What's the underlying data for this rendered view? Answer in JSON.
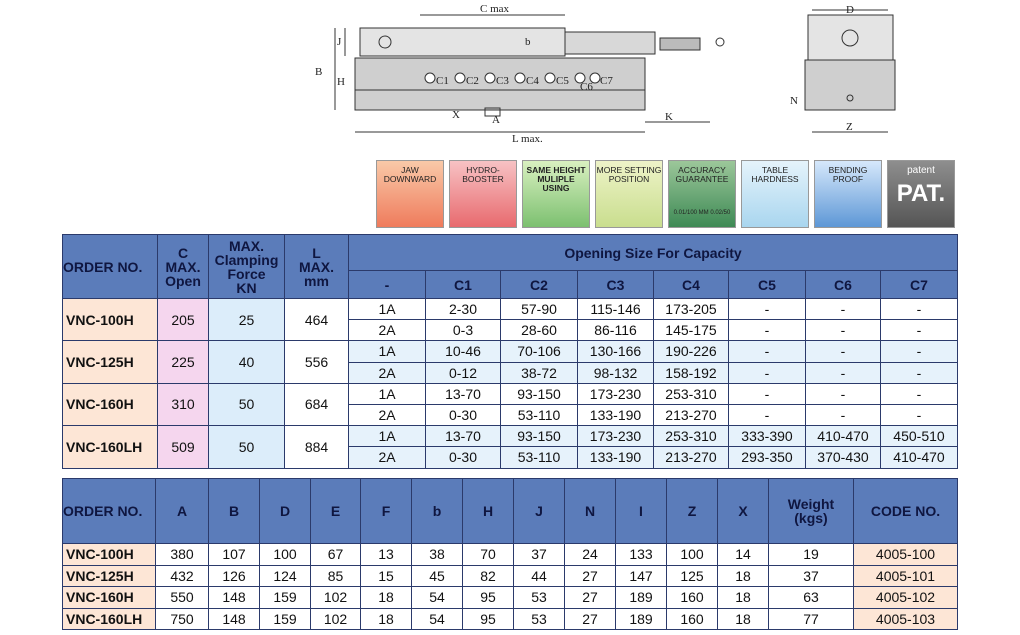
{
  "diagram": {
    "labels": [
      "C max",
      "J",
      "b",
      "B",
      "H",
      "C1",
      "C2",
      "C3",
      "C4",
      "C5",
      "C6",
      "C7",
      "X",
      "A",
      "K",
      "L max.",
      "D",
      "N",
      "Z"
    ]
  },
  "features": [
    {
      "label": "JAW\nDOWNWARD"
    },
    {
      "label": "HYDRO-\nBOOSTER"
    },
    {
      "label": "SAME HEIGHT\nMULIPLE USING"
    },
    {
      "label": "MORE SETTING\nPOSITION"
    },
    {
      "label": "ACCURACY\nGUARANTEE",
      "note": "0.01/100 MM 0.02/50"
    },
    {
      "label": "TABLE\nHARDNESS"
    },
    {
      "label": "BENDING\nPROOF"
    },
    {
      "label": "patent",
      "note": "PAT."
    }
  ],
  "capacity_table": {
    "columns": [
      "ORDER NO.",
      "C\nMAX.\nOpen",
      "MAX.\nClamping\nForce\nKN",
      "L\nMAX.\nmm"
    ],
    "group_header": "Opening Size For Capacity",
    "sub_columns": [
      "-",
      "C1",
      "C2",
      "C3",
      "C4",
      "C5",
      "C6",
      "C7"
    ],
    "rows": [
      {
        "order": "VNC-100H",
        "c_max": "205",
        "force": "25",
        "l_max": "464",
        "lines": [
          [
            "1A",
            "2-30",
            "57-90",
            "115-146",
            "173-205",
            "-",
            "-",
            "-"
          ],
          [
            "2A",
            "0-3",
            "28-60",
            "86-116",
            "145-175",
            "-",
            "-",
            "-"
          ]
        ]
      },
      {
        "order": "VNC-125H",
        "c_max": "225",
        "force": "40",
        "l_max": "556",
        "lines": [
          [
            "1A",
            "10-46",
            "70-106",
            "130-166",
            "190-226",
            "-",
            "-",
            "-"
          ],
          [
            "2A",
            "0-12",
            "38-72",
            "98-132",
            "158-192",
            "-",
            "-",
            "-"
          ]
        ]
      },
      {
        "order": "VNC-160H",
        "c_max": "310",
        "force": "50",
        "l_max": "684",
        "lines": [
          [
            "1A",
            "13-70",
            "93-150",
            "173-230",
            "253-310",
            "-",
            "-",
            "-"
          ],
          [
            "2A",
            "0-30",
            "53-110",
            "133-190",
            "213-270",
            "-",
            "-",
            "-"
          ]
        ]
      },
      {
        "order": "VNC-160LH",
        "c_max": "509",
        "force": "50",
        "l_max": "884",
        "lines": [
          [
            "1A",
            "13-70",
            "93-150",
            "173-230",
            "253-310",
            "333-390",
            "410-470",
            "450-510"
          ],
          [
            "2A",
            "0-30",
            "53-110",
            "133-190",
            "213-270",
            "293-350",
            "370-430",
            "410-470"
          ]
        ]
      }
    ]
  },
  "spec_table": {
    "columns": [
      "ORDER NO.",
      "A",
      "B",
      "D",
      "E",
      "F",
      "b",
      "H",
      "J",
      "N",
      "I",
      "Z",
      "X",
      "Weight\n(kgs)",
      "CODE NO."
    ],
    "rows": [
      [
        "VNC-100H",
        "380",
        "107",
        "100",
        "67",
        "13",
        "38",
        "70",
        "37",
        "24",
        "133",
        "100",
        "14",
        "19",
        "4005-100"
      ],
      [
        "VNC-125H",
        "432",
        "126",
        "124",
        "85",
        "15",
        "45",
        "82",
        "44",
        "27",
        "147",
        "125",
        "18",
        "37",
        "4005-101"
      ],
      [
        "VNC-160H",
        "550",
        "148",
        "159",
        "102",
        "18",
        "54",
        "95",
        "53",
        "27",
        "189",
        "160",
        "18",
        "63",
        "4005-102"
      ],
      [
        "VNC-160LH",
        "750",
        "148",
        "159",
        "102",
        "18",
        "54",
        "95",
        "53",
        "27",
        "189",
        "160",
        "18",
        "77",
        "4005-103"
      ]
    ]
  }
}
